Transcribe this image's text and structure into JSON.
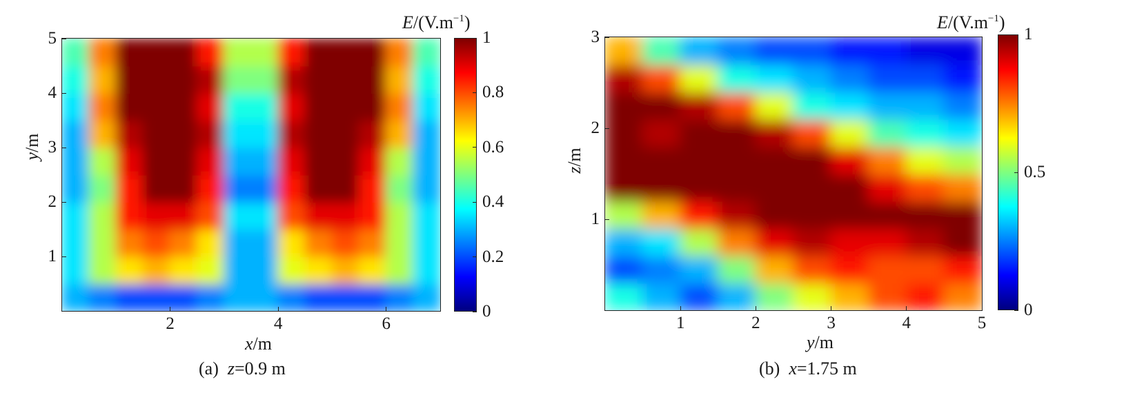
{
  "colormap": {
    "name": "jet",
    "stops": [
      "#00007f",
      "#0000ff",
      "#007fff",
      "#00ffff",
      "#7fff7f",
      "#ffff00",
      "#ff7f00",
      "#ff0000",
      "#7f0000"
    ]
  },
  "panels": [
    {
      "caption_prefix": "(a)",
      "caption_var": "z",
      "caption_value": "=0.9 m",
      "x_var": "x",
      "x_unit": "/m",
      "y_var": "y",
      "y_unit": "/m",
      "colorbar_var": "E",
      "colorbar_unit_open": "/(V.m",
      "colorbar_exp": "−1",
      "colorbar_unit_close": ")",
      "x_ticks": [
        "2",
        "4",
        "6"
      ],
      "y_ticks": [
        "1",
        "2",
        "3",
        "4",
        "5"
      ],
      "cb_ticks": [
        "0",
        "0.2",
        "0.4",
        "0.6",
        "0.8",
        "1"
      ]
    },
    {
      "caption_prefix": "(b)",
      "caption_var": "x",
      "caption_value": "=1.75 m",
      "x_var": "y",
      "x_unit": "/m",
      "y_var": "z",
      "y_unit": "/m",
      "colorbar_var": "E",
      "colorbar_unit_open": "/(V.m",
      "colorbar_exp": "−1",
      "colorbar_unit_close": ")",
      "x_ticks": [
        "1",
        "2",
        "3",
        "4",
        "5"
      ],
      "y_ticks": [
        "1",
        "2",
        "3"
      ],
      "cb_ticks": [
        "0",
        "0.5",
        "1"
      ]
    }
  ],
  "chart_data": [
    {
      "type": "heatmap",
      "title": "",
      "xlabel": "x/m",
      "ylabel": "y/m",
      "xlim": [
        0,
        7
      ],
      "ylim": [
        0,
        5
      ],
      "x_ticks": [
        2,
        4,
        6
      ],
      "y_ticks": [
        1,
        2,
        3,
        4,
        5
      ],
      "colorbar_label": "E/(V.m−1)",
      "colorbar_range": [
        0,
        1
      ],
      "colorbar_ticks": [
        0,
        0.2,
        0.4,
        0.6,
        0.8,
        1
      ],
      "caption": "(a) z=0.9 m",
      "x": [
        0.25,
        0.75,
        1.25,
        1.75,
        2.25,
        2.75,
        3.25,
        3.75,
        4.25,
        4.75,
        5.25,
        5.75,
        6.25,
        6.75
      ],
      "y": [
        0.25,
        0.75,
        1.25,
        1.75,
        2.25,
        2.75,
        3.25,
        3.75,
        4.25,
        4.75
      ],
      "z": [
        [
          0.3,
          0.25,
          0.2,
          0.2,
          0.2,
          0.25,
          0.3,
          0.3,
          0.25,
          0.2,
          0.2,
          0.2,
          0.25,
          0.3
        ],
        [
          0.35,
          0.55,
          0.65,
          0.7,
          0.65,
          0.6,
          0.3,
          0.3,
          0.6,
          0.65,
          0.7,
          0.65,
          0.55,
          0.35
        ],
        [
          0.35,
          0.55,
          0.75,
          0.8,
          0.75,
          0.65,
          0.3,
          0.3,
          0.65,
          0.75,
          0.8,
          0.75,
          0.55,
          0.35
        ],
        [
          0.35,
          0.55,
          0.85,
          0.9,
          0.9,
          0.8,
          0.35,
          0.35,
          0.8,
          0.9,
          0.9,
          0.85,
          0.55,
          0.35
        ],
        [
          0.3,
          0.5,
          0.85,
          1.0,
          1.0,
          0.85,
          0.25,
          0.25,
          0.85,
          1.0,
          1.0,
          0.85,
          0.5,
          0.3
        ],
        [
          0.3,
          0.55,
          0.9,
          1.0,
          1.0,
          0.9,
          0.3,
          0.3,
          0.9,
          1.0,
          1.0,
          0.9,
          0.55,
          0.3
        ],
        [
          0.3,
          0.7,
          0.95,
          1.0,
          1.0,
          0.95,
          0.35,
          0.35,
          0.95,
          1.0,
          1.0,
          0.95,
          0.7,
          0.3
        ],
        [
          0.35,
          0.75,
          1.0,
          1.0,
          1.0,
          0.9,
          0.4,
          0.4,
          0.9,
          1.0,
          1.0,
          1.0,
          0.75,
          0.35
        ],
        [
          0.4,
          0.7,
          1.0,
          1.0,
          1.0,
          0.95,
          0.5,
          0.5,
          0.95,
          1.0,
          1.0,
          1.0,
          0.7,
          0.4
        ],
        [
          0.45,
          0.75,
          1.0,
          1.0,
          1.0,
          0.85,
          0.55,
          0.55,
          0.85,
          1.0,
          1.0,
          1.0,
          0.75,
          0.45
        ]
      ]
    },
    {
      "type": "heatmap",
      "title": "",
      "xlabel": "y/m",
      "ylabel": "z/m",
      "xlim": [
        0,
        5
      ],
      "ylim": [
        0,
        3
      ],
      "x_ticks": [
        1,
        2,
        3,
        4,
        5
      ],
      "y_ticks": [
        1,
        2,
        3
      ],
      "colorbar_label": "E/(V.m−1)",
      "colorbar_range": [
        0,
        1
      ],
      "colorbar_ticks": [
        0,
        0.5,
        1
      ],
      "caption": "(b) x=1.75 m",
      "x": [
        0.25,
        0.75,
        1.25,
        1.75,
        2.25,
        2.75,
        3.25,
        3.75,
        4.25,
        4.75
      ],
      "y": [
        0.15,
        0.45,
        0.75,
        1.05,
        1.35,
        1.65,
        1.95,
        2.25,
        2.55,
        2.85
      ],
      "z": [
        [
          0.4,
          0.3,
          0.2,
          0.3,
          0.5,
          0.6,
          0.7,
          0.8,
          0.85,
          0.75
        ],
        [
          0.2,
          0.25,
          0.3,
          0.5,
          0.7,
          0.8,
          0.85,
          0.8,
          0.8,
          0.85
        ],
        [
          0.3,
          0.35,
          0.55,
          0.75,
          0.9,
          0.95,
          0.9,
          0.9,
          0.95,
          1.0
        ],
        [
          0.55,
          0.7,
          0.85,
          0.95,
          1.0,
          1.0,
          1.0,
          1.0,
          1.0,
          1.0
        ],
        [
          1.0,
          1.0,
          1.0,
          1.0,
          1.0,
          1.0,
          1.0,
          0.9,
          0.8,
          0.75
        ],
        [
          1.0,
          1.0,
          1.0,
          1.0,
          1.0,
          1.0,
          0.9,
          0.75,
          0.6,
          0.55
        ],
        [
          1.0,
          0.95,
          1.0,
          1.0,
          0.95,
          0.8,
          0.6,
          0.45,
          0.4,
          0.35
        ],
        [
          1.0,
          1.0,
          0.95,
          0.8,
          0.6,
          0.4,
          0.35,
          0.3,
          0.3,
          0.25
        ],
        [
          0.95,
          0.8,
          0.6,
          0.4,
          0.35,
          0.3,
          0.25,
          0.2,
          0.2,
          0.15
        ],
        [
          0.7,
          0.45,
          0.3,
          0.25,
          0.2,
          0.2,
          0.15,
          0.15,
          0.1,
          0.1
        ]
      ]
    }
  ]
}
